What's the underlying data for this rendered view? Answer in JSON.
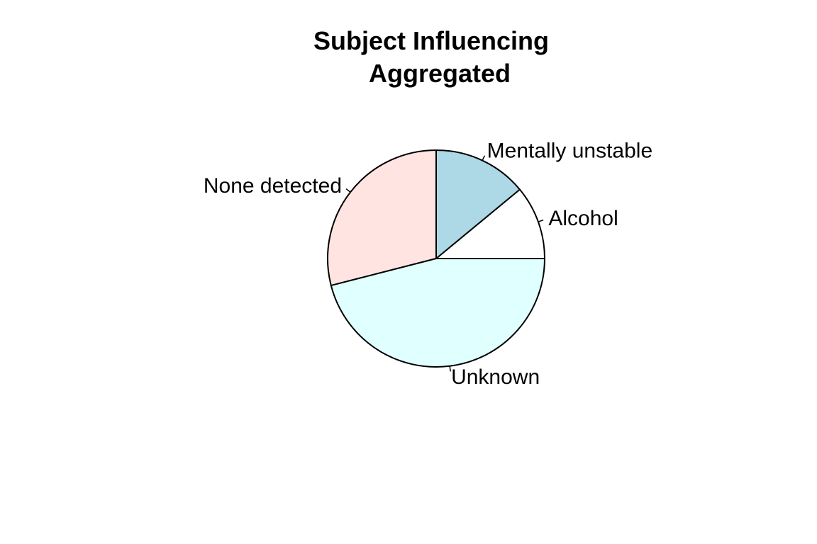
{
  "chart_data": {
    "type": "pie",
    "title_lines": [
      "Subject Influencing",
      "Aggregated"
    ],
    "start_angle_deg": 0,
    "direction": "counterclockwise",
    "slices": [
      {
        "label": "Alcohol",
        "value": 11,
        "color": "#ffffff"
      },
      {
        "label": "Mentally unstable",
        "value": 14,
        "color": "#add8e6"
      },
      {
        "label": "None detected",
        "value": 29,
        "color": "#ffe4e1"
      },
      {
        "label": "Unknown",
        "value": 46,
        "color": "#e0ffff"
      }
    ]
  }
}
